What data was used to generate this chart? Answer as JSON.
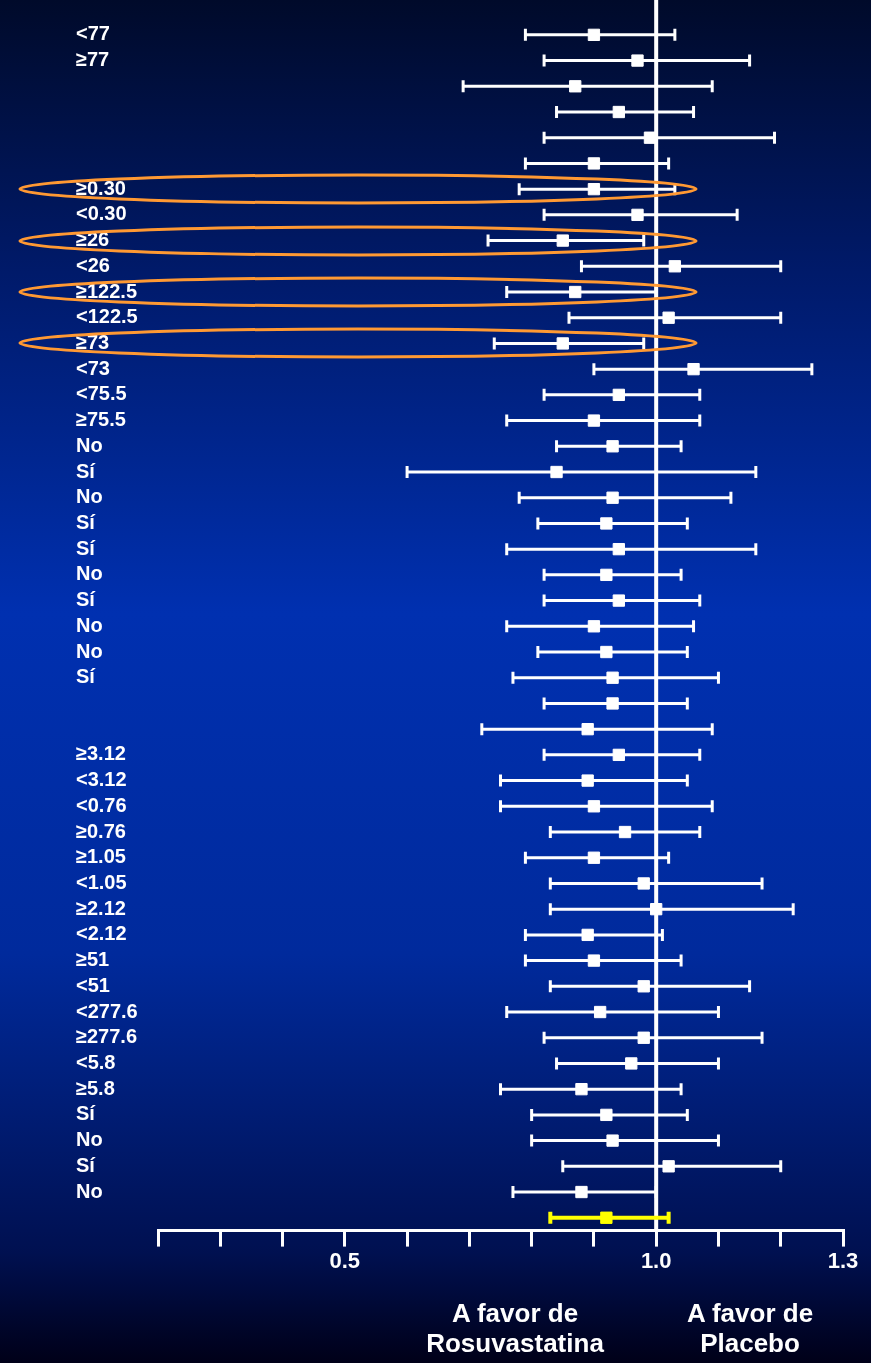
{
  "chart_data": {
    "type": "scatter",
    "orientation": "horizontal",
    "marker": "square",
    "grid": false,
    "legend": false,
    "categories": [
      "<77",
      "≥77",
      null,
      null,
      null,
      null,
      "≥0.30",
      "<0.30",
      "≥26",
      "<26",
      "≥122.5",
      "<122.5",
      "≥73",
      "<73",
      "<75.5",
      "≥75.5",
      "No",
      "Sí",
      "No",
      "Sí",
      "Sí",
      "No",
      "Sí",
      "No",
      "No",
      "Sí",
      null,
      null,
      "≥3.12",
      "<3.12",
      "<0.76",
      "≥0.76",
      "≥1.05",
      "<1.05",
      "≥2.12",
      "<2.12",
      "≥51",
      "<51",
      "<277.6",
      "≥277.6",
      "<5.8",
      "≥5.8",
      "Sí",
      "No",
      "Sí",
      "No",
      null
    ],
    "values": [
      0.9,
      0.97,
      0.87,
      0.94,
      0.99,
      0.9,
      0.9,
      0.97,
      0.85,
      1.03,
      0.87,
      1.02,
      0.85,
      1.06,
      0.94,
      0.9,
      0.93,
      0.84,
      0.93,
      0.92,
      0.94,
      0.92,
      0.94,
      0.9,
      0.92,
      0.93,
      0.93,
      0.89,
      0.94,
      0.89,
      0.9,
      0.95,
      0.9,
      0.98,
      1.0,
      0.89,
      0.9,
      0.98,
      0.91,
      0.98,
      0.96,
      0.88,
      0.92,
      0.93,
      1.02,
      0.88,
      0.92
    ],
    "errors": [
      [
        0.79,
        1.03
      ],
      [
        0.82,
        1.15
      ],
      [
        0.69,
        1.09
      ],
      [
        0.84,
        1.06
      ],
      [
        0.82,
        1.19
      ],
      [
        0.79,
        1.02
      ],
      [
        0.78,
        1.03
      ],
      [
        0.82,
        1.13
      ],
      [
        0.73,
        0.98
      ],
      [
        0.88,
        1.2
      ],
      [
        0.76,
        1.0
      ],
      [
        0.86,
        1.2
      ],
      [
        0.74,
        0.98
      ],
      [
        0.9,
        1.25
      ],
      [
        0.82,
        1.07
      ],
      [
        0.76,
        1.07
      ],
      [
        0.84,
        1.04
      ],
      [
        0.6,
        1.16
      ],
      [
        0.78,
        1.12
      ],
      [
        0.81,
        1.05
      ],
      [
        0.76,
        1.16
      ],
      [
        0.82,
        1.04
      ],
      [
        0.82,
        1.07
      ],
      [
        0.76,
        1.06
      ],
      [
        0.81,
        1.05
      ],
      [
        0.77,
        1.1
      ],
      [
        0.82,
        1.05
      ],
      [
        0.72,
        1.09
      ],
      [
        0.82,
        1.07
      ],
      [
        0.75,
        1.05
      ],
      [
        0.75,
        1.09
      ],
      [
        0.83,
        1.07
      ],
      [
        0.79,
        1.02
      ],
      [
        0.83,
        1.17
      ],
      [
        0.83,
        1.22
      ],
      [
        0.79,
        1.01
      ],
      [
        0.79,
        1.04
      ],
      [
        0.83,
        1.15
      ],
      [
        0.76,
        1.1
      ],
      [
        0.82,
        1.17
      ],
      [
        0.84,
        1.1
      ],
      [
        0.75,
        1.04
      ],
      [
        0.8,
        1.05
      ],
      [
        0.8,
        1.1
      ],
      [
        0.85,
        1.2
      ],
      [
        0.77,
        1.0
      ],
      [
        0.83,
        1.02
      ]
    ],
    "colors": [
      "#ffffff",
      "#ffffff",
      "#ffffff",
      "#ffffff",
      "#ffffff",
      "#ffffff",
      "#ffffff",
      "#ffffff",
      "#ffffff",
      "#ffffff",
      "#ffffff",
      "#ffffff",
      "#ffffff",
      "#ffffff",
      "#ffffff",
      "#ffffff",
      "#ffffff",
      "#ffffff",
      "#ffffff",
      "#ffffff",
      "#ffffff",
      "#ffffff",
      "#ffffff",
      "#ffffff",
      "#ffffff",
      "#ffffff",
      "#ffffff",
      "#ffffff",
      "#ffffff",
      "#ffffff",
      "#ffffff",
      "#ffffff",
      "#ffffff",
      "#ffffff",
      "#ffffff",
      "#ffffff",
      "#ffffff",
      "#ffffff",
      "#ffffff",
      "#ffffff",
      "#ffffff",
      "#ffffff",
      "#ffffff",
      "#ffffff",
      "#ffffff",
      "#ffffff",
      "#ffff00"
    ],
    "xlim": [
      0.2,
      1.3
    ],
    "xticks": [
      {
        "value": 0.2,
        "label": null
      },
      {
        "value": 0.3,
        "label": null
      },
      {
        "value": 0.4,
        "label": null
      },
      0.5,
      {
        "value": 0.6,
        "label": null
      },
      {
        "value": 0.7,
        "label": null
      },
      {
        "value": 0.8,
        "label": null
      },
      {
        "value": 0.9,
        "label": null
      },
      {
        "value": 1,
        "label": "1.0"
      },
      {
        "value": 1.1,
        "label": null
      },
      {
        "value": 1.2,
        "label": null
      },
      1.3
    ],
    "ref_lines": [
      {
        "axis": "x",
        "value": 1,
        "color": "#ffffff"
      }
    ],
    "annotations": [
      "A favor de Rosuvastatina",
      "A favor de Placebo"
    ]
  }
}
